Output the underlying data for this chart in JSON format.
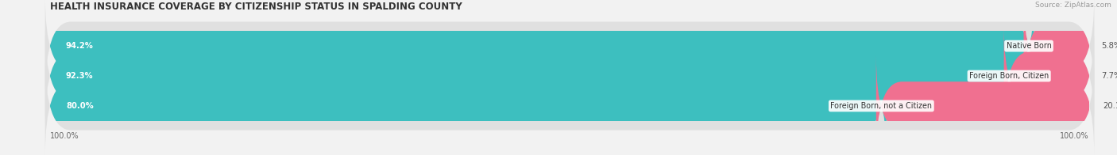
{
  "title": "HEALTH INSURANCE COVERAGE BY CITIZENSHIP STATUS IN SPALDING COUNTY",
  "source": "Source: ZipAtlas.com",
  "categories": [
    "Native Born",
    "Foreign Born, Citizen",
    "Foreign Born, not a Citizen"
  ],
  "with_coverage": [
    94.2,
    92.3,
    80.0
  ],
  "without_coverage": [
    5.8,
    7.7,
    20.1
  ],
  "color_with": "#3DBFBF",
  "color_without": "#F07090",
  "bar_height": 0.62,
  "figsize": [
    14.06,
    1.96
  ],
  "dpi": 100,
  "bg_color": "#f2f2f2",
  "bar_bg_color": "#e0e0e0",
  "title_fontsize": 8.5,
  "label_fontsize": 7.2,
  "legend_fontsize": 7.5,
  "source_fontsize": 6.5,
  "left_label": "100.0%",
  "right_label": "100.0%",
  "bar_scale": 100
}
